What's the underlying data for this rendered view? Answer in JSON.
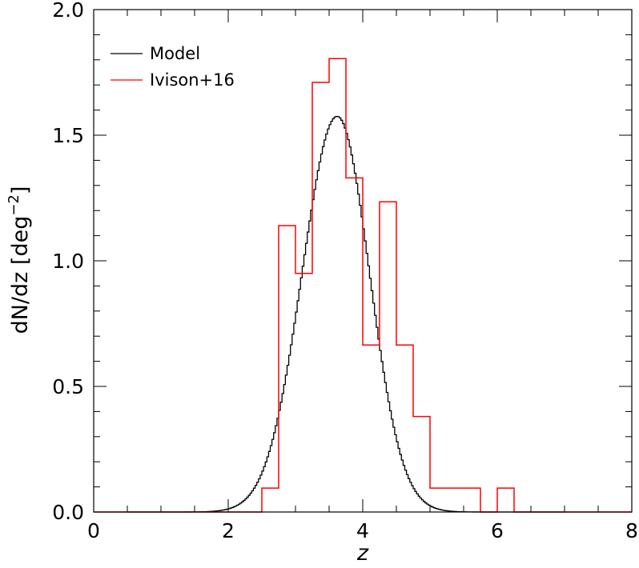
{
  "chart_data": {
    "type": "line",
    "xlabel": "z",
    "ylabel": "dN/dz [deg",
    "ylabel_exponent": "−2",
    "ylabel_close": "]",
    "xlim": [
      0,
      8
    ],
    "ylim": [
      0,
      2
    ],
    "x_ticks": [
      "0",
      "2",
      "4",
      "6",
      "8"
    ],
    "y_ticks": [
      "0.0",
      "0.5",
      "1.0",
      "1.5",
      "2.0"
    ],
    "legend_position": "top-left",
    "series": [
      {
        "name": "Model",
        "color": "#000000",
        "style": "smooth-curve",
        "peak_x": 3.62,
        "peak_y": 1.575,
        "x_range": [
          0.5,
          7.0
        ]
      },
      {
        "name": "Ivison+16",
        "color": "#ff0000",
        "style": "step",
        "bin_edges": [
          0,
          2.5,
          2.75,
          3.0,
          3.25,
          3.5,
          3.75,
          4.0,
          4.25,
          4.5,
          4.75,
          5.0,
          5.25,
          5.5,
          5.75,
          6.0,
          6.25,
          6.5,
          8.0
        ],
        "values": [
          0.0,
          0.095,
          1.14,
          0.95,
          1.71,
          1.805,
          1.33,
          0.665,
          1.235,
          0.665,
          0.38,
          0.095,
          0.095,
          0.095,
          0.0,
          0.095,
          0.0,
          0.0
        ]
      }
    ]
  }
}
